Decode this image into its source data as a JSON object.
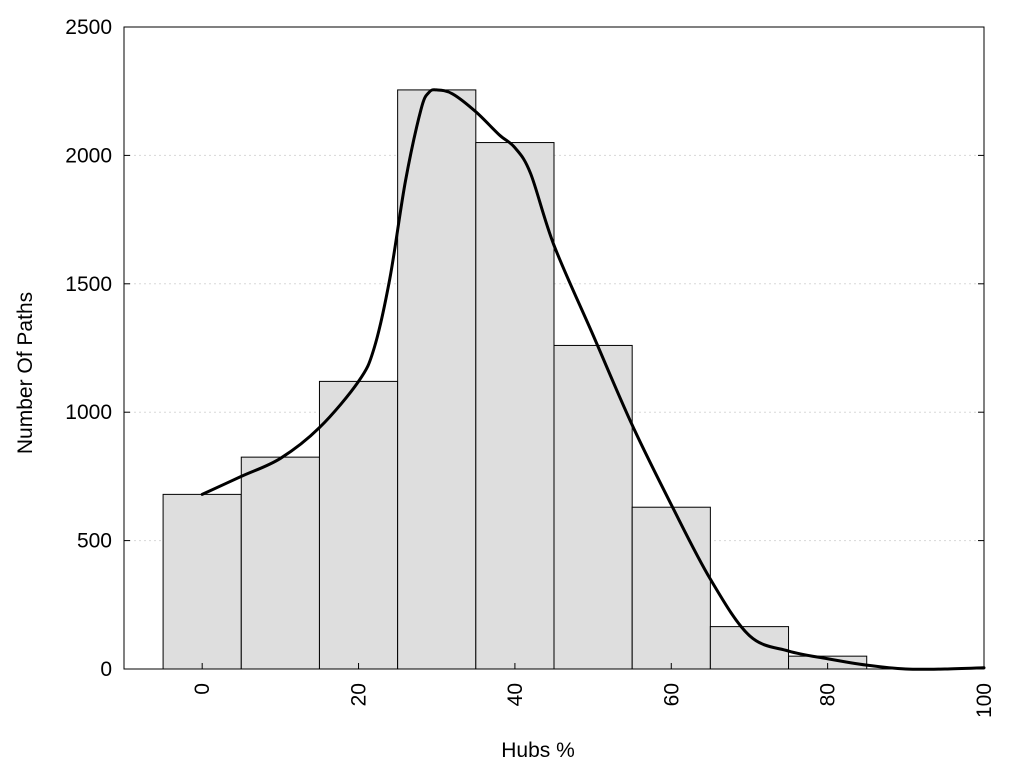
{
  "chart_data": {
    "type": "bar",
    "title": "",
    "xlabel": "Hubs %",
    "ylabel": "Number Of Paths",
    "xlim": [
      -10,
      100
    ],
    "ylim": [
      0,
      2500
    ],
    "grid": true,
    "bin_width": 10,
    "x_ticks": [
      {
        "value": 0,
        "label": "0"
      },
      {
        "value": 20,
        "label": "20"
      },
      {
        "value": 40,
        "label": "40"
      },
      {
        "value": 60,
        "label": "60"
      },
      {
        "value": 80,
        "label": "80"
      },
      {
        "value": 100,
        "label": "100"
      }
    ],
    "y_ticks": [
      {
        "value": 0,
        "label": "0"
      },
      {
        "value": 500,
        "label": "500"
      },
      {
        "value": 1000,
        "label": "1000"
      },
      {
        "value": 1500,
        "label": "1500"
      },
      {
        "value": 2000,
        "label": "2000"
      },
      {
        "value": 2500,
        "label": "2500"
      }
    ],
    "bars": {
      "x": [
        0,
        10,
        20,
        30,
        40,
        50,
        60,
        70,
        80,
        90
      ],
      "values": [
        680,
        825,
        1120,
        2255,
        2050,
        1260,
        630,
        165,
        50,
        0
      ],
      "color": "#dedede"
    },
    "curve": {
      "x": [
        0,
        5,
        10,
        15,
        20,
        22,
        24,
        26,
        28,
        29,
        30,
        32,
        35,
        38,
        40,
        42,
        45,
        50,
        55,
        60,
        65,
        70,
        75,
        80,
        85,
        90,
        95,
        100
      ],
      "values": [
        680,
        750,
        820,
        940,
        1120,
        1250,
        1520,
        1900,
        2180,
        2245,
        2255,
        2240,
        2170,
        2080,
        2030,
        1930,
        1650,
        1300,
        950,
        640,
        350,
        130,
        70,
        40,
        15,
        0,
        0,
        5
      ],
      "color": "#000000"
    }
  }
}
